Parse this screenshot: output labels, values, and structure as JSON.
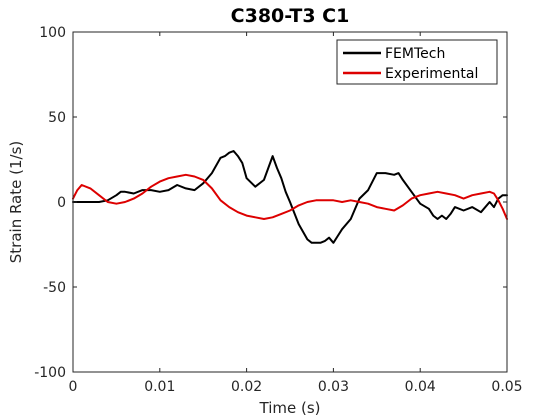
{
  "chart_data": {
    "type": "line",
    "title": "C380-T3 C1",
    "xlabel": "Time (s)",
    "ylabel": "Strain Rate (1/s)",
    "xlim": [
      0,
      0.05
    ],
    "ylim": [
      -100,
      100
    ],
    "x_ticks": [
      0,
      0.01,
      0.02,
      0.03,
      0.04,
      0.05
    ],
    "x_tick_labels": [
      "0",
      "0.01",
      "0.02",
      "0.03",
      "0.04",
      "0.05"
    ],
    "y_ticks": [
      -100,
      -50,
      0,
      50,
      100
    ],
    "y_tick_labels": [
      "-100",
      "-50",
      "0",
      "50",
      "100"
    ],
    "grid": false,
    "legend_position": "top-right",
    "series": [
      {
        "name": "FEMTech",
        "color": "#000000",
        "x": [
          0,
          0.002,
          0.003,
          0.004,
          0.005,
          0.0055,
          0.006,
          0.007,
          0.008,
          0.009,
          0.01,
          0.011,
          0.012,
          0.013,
          0.014,
          0.015,
          0.016,
          0.017,
          0.0175,
          0.018,
          0.0185,
          0.019,
          0.0195,
          0.02,
          0.021,
          0.022,
          0.0225,
          0.023,
          0.0235,
          0.024,
          0.0245,
          0.025,
          0.026,
          0.027,
          0.0275,
          0.028,
          0.0285,
          0.029,
          0.0295,
          0.03,
          0.0305,
          0.031,
          0.032,
          0.033,
          0.034,
          0.035,
          0.036,
          0.037,
          0.0375,
          0.038,
          0.039,
          0.04,
          0.041,
          0.0415,
          0.042,
          0.0425,
          0.043,
          0.0435,
          0.044,
          0.045,
          0.046,
          0.047,
          0.048,
          0.0485,
          0.049,
          0.0495,
          0.05
        ],
        "y": [
          0,
          0,
          0,
          1,
          4,
          6,
          6,
          5,
          7,
          7,
          6,
          7,
          10,
          8,
          7,
          11,
          17,
          26,
          27,
          29,
          30,
          27,
          23,
          14,
          9,
          13,
          20,
          27,
          20,
          14,
          6,
          0,
          -13,
          -22,
          -24,
          -24,
          -24,
          -23,
          -21,
          -24,
          -20,
          -16,
          -10,
          2,
          7,
          17,
          17,
          16,
          17,
          13,
          6,
          -1,
          -4,
          -8,
          -10,
          -8,
          -10,
          -7,
          -3,
          -5,
          -3,
          -6,
          0,
          -3,
          2,
          4,
          4
        ]
      },
      {
        "name": "Experimental",
        "color": "#dd0000",
        "x": [
          0,
          0.0005,
          0.001,
          0.002,
          0.003,
          0.004,
          0.005,
          0.006,
          0.007,
          0.008,
          0.009,
          0.01,
          0.011,
          0.012,
          0.013,
          0.014,
          0.015,
          0.016,
          0.017,
          0.018,
          0.019,
          0.02,
          0.021,
          0.022,
          0.023,
          0.024,
          0.025,
          0.026,
          0.027,
          0.028,
          0.029,
          0.03,
          0.031,
          0.032,
          0.033,
          0.034,
          0.035,
          0.036,
          0.037,
          0.038,
          0.039,
          0.04,
          0.041,
          0.042,
          0.043,
          0.044,
          0.045,
          0.046,
          0.047,
          0.048,
          0.0485,
          0.049,
          0.0495,
          0.05
        ],
        "y": [
          2,
          7,
          10,
          8,
          4,
          0,
          -1,
          0,
          2,
          5,
          9,
          12,
          14,
          15,
          16,
          15,
          13,
          8,
          1,
          -3,
          -6,
          -8,
          -9,
          -10,
          -9,
          -7,
          -5,
          -2,
          0,
          1,
          1,
          1,
          0,
          1,
          0,
          -1,
          -3,
          -4,
          -5,
          -2,
          2,
          4,
          5,
          6,
          5,
          4,
          2,
          4,
          5,
          6,
          5,
          1,
          -4,
          -10
        ]
      }
    ]
  }
}
